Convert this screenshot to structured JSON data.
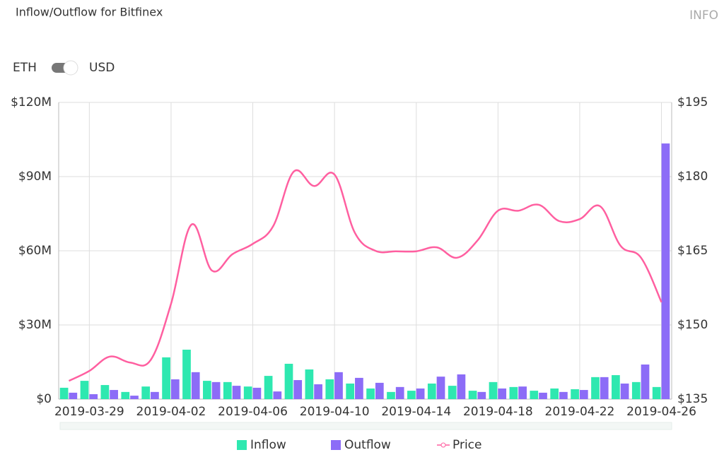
{
  "header": {
    "title": "Inflow/Outflow for Bitfinex",
    "info": "INFO",
    "toggle_left": "ETH",
    "toggle_right": "USD"
  },
  "chart_data": {
    "type": "bar-line",
    "categories": [
      null,
      "2019-03-29",
      null,
      null,
      null,
      "2019-04-02",
      null,
      null,
      null,
      "2019-04-06",
      null,
      null,
      null,
      "2019-04-10",
      null,
      null,
      null,
      "2019-04-14",
      null,
      null,
      null,
      "2019-04-18",
      null,
      null,
      null,
      "2019-04-22",
      null,
      null,
      null,
      "2019-04-26"
    ],
    "series": [
      {
        "name": "Inflow",
        "color": "#2ee8b0",
        "kind": "bar",
        "values": [
          4600000,
          7400000,
          5700000,
          2900000,
          5100000,
          16900000,
          20000000,
          7400000,
          6900000,
          5100000,
          9400000,
          14300000,
          12000000,
          8000000,
          6300000,
          4300000,
          2900000,
          3400000,
          6300000,
          5400000,
          3400000,
          6900000,
          4900000,
          3400000,
          4300000,
          4000000,
          8900000,
          9700000,
          6900000,
          4900000
        ]
      },
      {
        "name": "Outflow",
        "color": "#8c6cf7",
        "kind": "bar",
        "values": [
          2600000,
          2000000,
          3700000,
          1400000,
          2900000,
          8000000,
          10900000,
          6900000,
          5400000,
          4600000,
          3100000,
          7700000,
          6000000,
          10900000,
          8600000,
          6600000,
          4900000,
          4300000,
          9100000,
          10000000,
          2900000,
          4300000,
          5100000,
          2600000,
          2900000,
          3700000,
          8900000,
          6300000,
          14000000,
          103400000
        ]
      },
      {
        "name": "Price",
        "color": "#ff5fa0",
        "kind": "line",
        "axis": "y2",
        "values": [
          138.7,
          140.7,
          143.6,
          142.4,
          142.9,
          154.3,
          170.3,
          161,
          164.3,
          166.4,
          170,
          181,
          178.1,
          180.4,
          168.6,
          165,
          164.9,
          164.9,
          165.7,
          163.6,
          167.1,
          173.1,
          173.1,
          174.3,
          171,
          171.4,
          174,
          166,
          163.6,
          154.6
        ]
      }
    ],
    "ylim": [
      0,
      120000000
    ],
    "yticks": [
      {
        "value": 0,
        "label": "$0"
      },
      {
        "value": 30000000,
        "label": "$30M"
      },
      {
        "value": 60000000,
        "label": "$60M"
      },
      {
        "value": 90000000,
        "label": "$90M"
      },
      {
        "value": 120000000,
        "label": "$120M"
      }
    ],
    "y2lim": [
      135,
      195
    ],
    "y2ticks": [
      {
        "value": 135,
        "label": "$135"
      },
      {
        "value": 150,
        "label": "$150"
      },
      {
        "value": 165,
        "label": "$165"
      },
      {
        "value": 180,
        "label": "$180"
      },
      {
        "value": 195,
        "label": "$195"
      }
    ],
    "grid": true,
    "legend": "bottom"
  }
}
